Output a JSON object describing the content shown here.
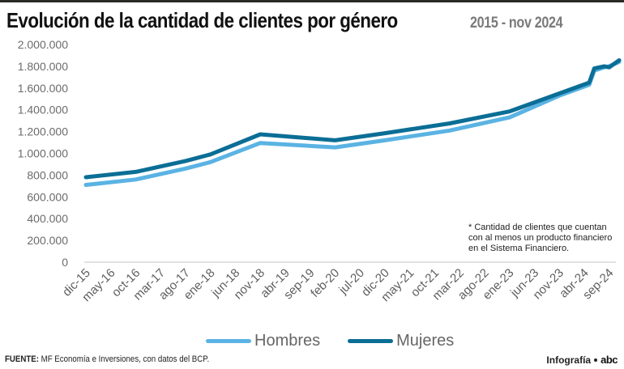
{
  "header": {
    "title": "Evolución de la cantidad de clientes por género",
    "subtitle": "2015 - nov 2024"
  },
  "chart_data": {
    "type": "line",
    "title": "Evolución de la cantidad de clientes por género",
    "subtitle": "2015 - nov 2024",
    "xlabel": "",
    "ylabel": "",
    "ylim": [
      0,
      2000000
    ],
    "yticks": [
      0,
      200000,
      400000,
      600000,
      800000,
      1000000,
      1200000,
      1400000,
      1600000,
      1800000,
      2000000
    ],
    "ytick_labels": [
      "0",
      "200.000",
      "400.000",
      "600.000",
      "800.000",
      "1.000.000",
      "1.200.000",
      "1.400.000",
      "1.600.000",
      "1.800.000",
      "2.000.000"
    ],
    "grid": false,
    "x_tick_labels": [
      "dic-15",
      "may-16",
      "oct-16",
      "mar-17",
      "ago-17",
      "ene-18",
      "jun-18",
      "nov-18",
      "abr-19",
      "sep-19",
      "feb-20",
      "jul-20",
      "dic-20",
      "may-21",
      "oct-21",
      "mar-22",
      "ago-22",
      "ene-23",
      "jun-23",
      "nov-23",
      "abr-24",
      "sep-24"
    ],
    "x_tick_month_index": [
      0,
      5,
      10,
      15,
      20,
      25,
      30,
      35,
      40,
      45,
      50,
      55,
      60,
      65,
      70,
      75,
      80,
      85,
      90,
      95,
      100,
      105
    ],
    "x_range_month_index": [
      0,
      107
    ],
    "legend_position": "bottom",
    "series": [
      {
        "name": "Hombres",
        "color": "#5ab3e3",
        "points": [
          {
            "m": 0,
            "v": 710000
          },
          {
            "m": 10,
            "v": 760000
          },
          {
            "m": 20,
            "v": 860000
          },
          {
            "m": 25,
            "v": 920000
          },
          {
            "m": 35,
            "v": 1095000
          },
          {
            "m": 50,
            "v": 1055000
          },
          {
            "m": 60,
            "v": 1120000
          },
          {
            "m": 73,
            "v": 1210000
          },
          {
            "m": 85,
            "v": 1330000
          },
          {
            "m": 95,
            "v": 1530000
          },
          {
            "m": 101,
            "v": 1630000
          },
          {
            "m": 102,
            "v": 1760000
          },
          {
            "m": 104,
            "v": 1790000
          },
          {
            "m": 105,
            "v": 1800000
          },
          {
            "m": 107,
            "v": 1840000
          }
        ]
      },
      {
        "name": "Mujeres",
        "color": "#0b6e96",
        "points": [
          {
            "m": 0,
            "v": 781000
          },
          {
            "m": 10,
            "v": 830000
          },
          {
            "m": 20,
            "v": 930000
          },
          {
            "m": 25,
            "v": 990000
          },
          {
            "m": 35,
            "v": 1175000
          },
          {
            "m": 50,
            "v": 1120000
          },
          {
            "m": 60,
            "v": 1185000
          },
          {
            "m": 73,
            "v": 1275000
          },
          {
            "m": 85,
            "v": 1385000
          },
          {
            "m": 95,
            "v": 1550000
          },
          {
            "m": 101,
            "v": 1650000
          },
          {
            "m": 102,
            "v": 1780000
          },
          {
            "m": 104,
            "v": 1800000
          },
          {
            "m": 105,
            "v": 1790000
          },
          {
            "m": 107,
            "v": 1855000
          }
        ]
      }
    ],
    "annotations": [
      "* Cantidad de clientes que cuentan con al menos un producto financiero en el Sistema Financiero."
    ]
  },
  "note": {
    "text": "* Cantidad de clientes que cuentan con al menos un producto financiero en el Sistema Financiero."
  },
  "legend": {
    "items": [
      {
        "label": "Hombres",
        "color": "#5ab3e3"
      },
      {
        "label": "Mujeres",
        "color": "#0b6e96"
      }
    ]
  },
  "footer": {
    "source_label": "FUENTE:",
    "source_text": " MF Economía e Inversiones, con datos del BCP.",
    "credit": "Infografía",
    "brand": "abc"
  }
}
